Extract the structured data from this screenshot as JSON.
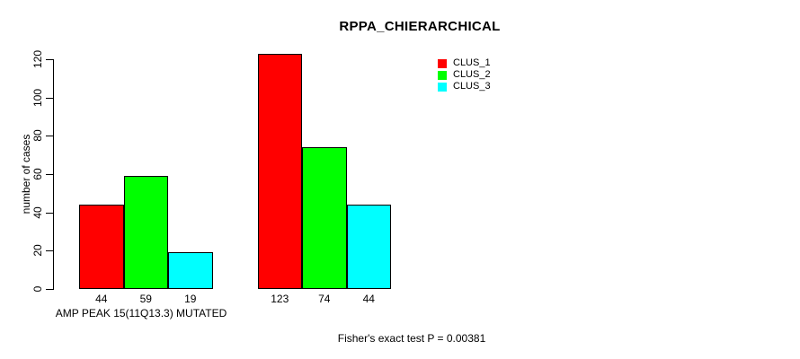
{
  "chart_data": {
    "type": "bar",
    "title": "RPPA_CHIERARCHICAL",
    "ylabel": "number of cases",
    "xlabel": "AMP PEAK 15(11Q13.3) MUTATED",
    "annotation": "Fisher's exact test P = 0.00381",
    "ylim": [
      0,
      120
    ],
    "yticks": [
      0,
      20,
      40,
      60,
      80,
      100,
      120
    ],
    "groups": [
      "AMP PEAK 15(11Q13.3) MUTATED",
      ""
    ],
    "series": [
      {
        "name": "CLUS_1",
        "color": "#ff0000",
        "values": [
          44,
          123
        ]
      },
      {
        "name": "CLUS_2",
        "color": "#00ff00",
        "values": [
          59,
          74
        ]
      },
      {
        "name": "CLUS_3",
        "color": "#00ffff",
        "values": [
          19,
          44
        ]
      }
    ],
    "legend_position": "top-right",
    "grid": false,
    "background": "#ffffff",
    "axis_color": "#000000",
    "text_color": "#000000"
  }
}
